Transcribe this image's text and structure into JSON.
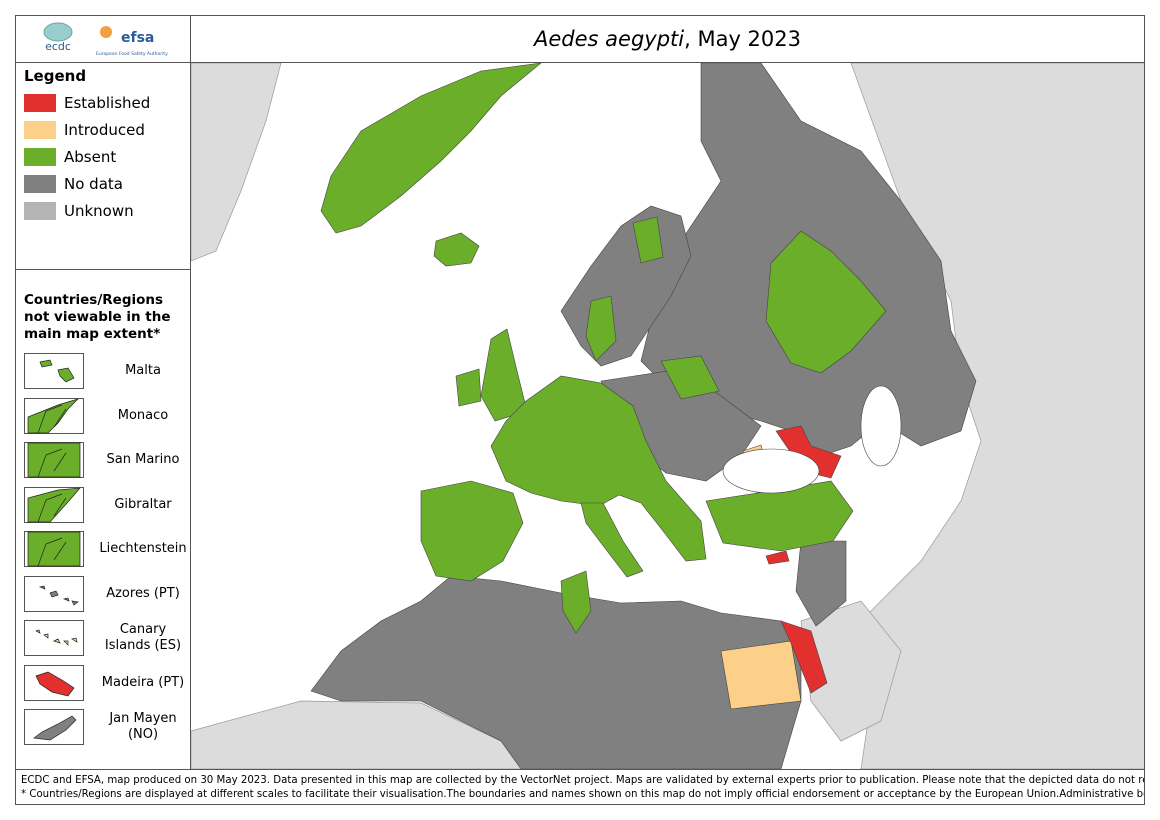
{
  "header": {
    "logos": [
      "ecdc",
      "efsa",
      "European Food Safety Authority"
    ],
    "title_italic": "Aedes aegypti",
    "title_rest": ", May 2023"
  },
  "legend": {
    "title": "Legend",
    "items": [
      {
        "label": "Established",
        "color": "#e2302f"
      },
      {
        "label": "Introduced",
        "color": "#fcd088"
      },
      {
        "label": "Absent",
        "color": "#6aae2a"
      },
      {
        "label": "No data",
        "color": "#808080"
      },
      {
        "label": "Unknown",
        "color": "#b4b4b4"
      }
    ]
  },
  "inset": {
    "title": "Countries/Regions not viewable in the main map extent*",
    "items": [
      {
        "label": "Malta",
        "color": "#6aae2a"
      },
      {
        "label": "Monaco",
        "color": "#6aae2a"
      },
      {
        "label": "San Marino",
        "color": "#6aae2a"
      },
      {
        "label": "Gibraltar",
        "color": "#6aae2a"
      },
      {
        "label": "Liechtenstein",
        "color": "#6aae2a"
      },
      {
        "label": "Azores (PT)",
        "color": "#808080"
      },
      {
        "label": "Canary Islands (ES)",
        "color": "#fcd088"
      },
      {
        "label": "Madeira (PT)",
        "color": "#e2302f"
      },
      {
        "label": "Jan Mayen (NO)",
        "color": "#808080"
      }
    ]
  },
  "footer": [
    "ECDC and EFSA, map produced on 30 May 2023. Data presented in this map are collected by the VectorNet project. Maps are validated by external experts prior to publication. Please note that the depicted data do not reflect the official views of the countries.",
    "* Countries/Regions are displayed at different scales to facilitate their visualisation.The boundaries and names shown on this map do not imply official endorsement or acceptance by the European Union.Administrative boundaries © EuroGeographics, UNFAO."
  ]
}
